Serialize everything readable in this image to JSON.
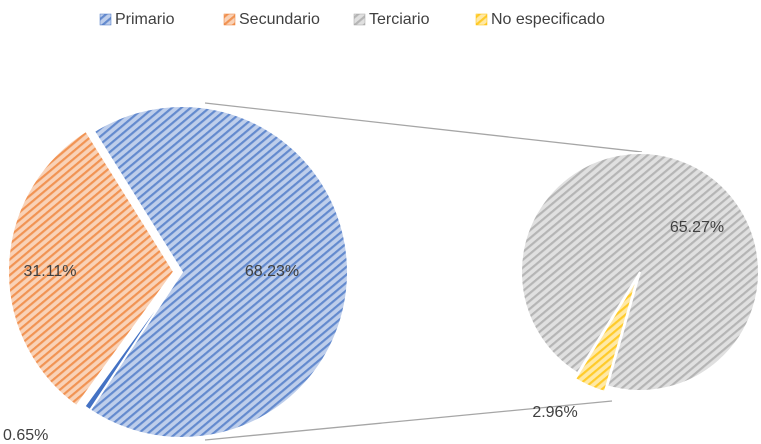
{
  "chart_data": {
    "type": "pie-of-pie",
    "categories": [
      "Primario",
      "Secundario",
      "Terciario",
      "No especificado"
    ],
    "values": [
      0.65,
      31.11,
      65.27,
      2.96
    ],
    "value_labels": [
      "0.65%",
      "31.11%",
      "65.27%",
      "2.96%"
    ],
    "colors": [
      "#4472c4",
      "#ed7d31",
      "#a5a5a5",
      "#ffc000"
    ],
    "combined_value": 68.23,
    "combined_value_label": "68.23%",
    "legend": "top"
  }
}
